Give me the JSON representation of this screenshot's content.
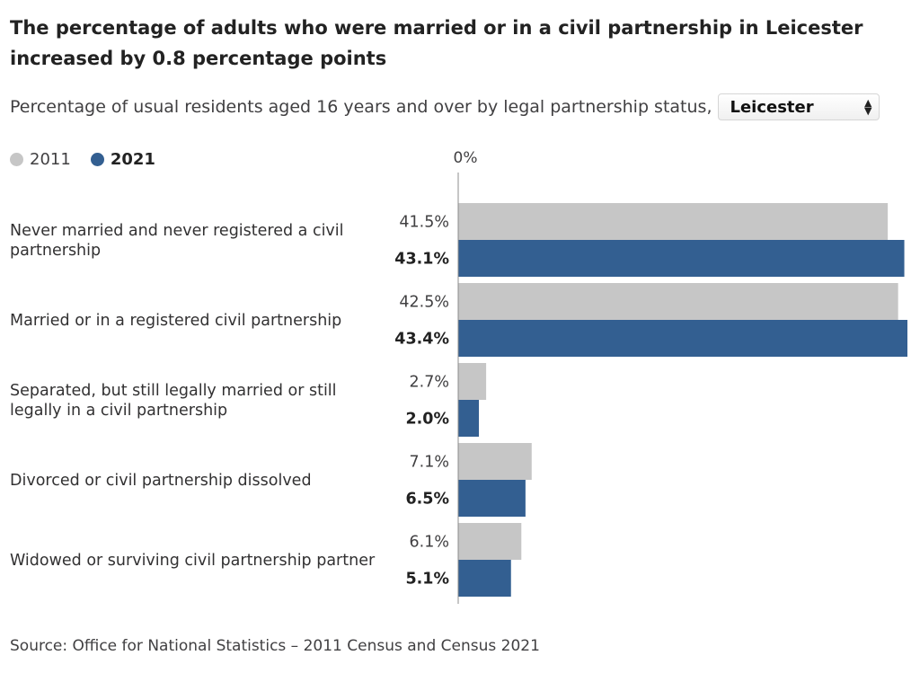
{
  "title": "The percentage of adults who were married or in a civil partnership in Leicester increased by 0.8 percentage points",
  "subtitle": "Percentage of usual residents aged 16 years and over by legal partnership status,",
  "area_select": {
    "value": "Leicester"
  },
  "source": "Source: Office for National Statistics – 2011 Census and Census 2021",
  "colors": {
    "series_2011": "#c6c6c6",
    "series_2021": "#335f91",
    "axis": "#8c8c8c"
  },
  "chart_data": {
    "type": "bar",
    "orientation": "horizontal",
    "axis_label": "0%",
    "xlim": [
      0,
      43.4
    ],
    "legend_placement": "top-left",
    "grid": false,
    "categories": [
      [
        "Never married and never registered a civil",
        "partnership"
      ],
      [
        "Married or in a registered civil partnership"
      ],
      [
        "Separated, but still legally married or still",
        "legally in a civil partnership"
      ],
      [
        "Divorced or civil partnership dissolved"
      ],
      [
        "Widowed or surviving civil partnership partner"
      ]
    ],
    "series": [
      {
        "name": "2011",
        "values": [
          41.5,
          42.5,
          2.7,
          7.1,
          6.1
        ],
        "labels": [
          "41.5%",
          "42.5%",
          "2.7%",
          "7.1%",
          "6.1%"
        ]
      },
      {
        "name": "2021",
        "values": [
          43.1,
          43.4,
          2.0,
          6.5,
          5.1
        ],
        "labels": [
          "43.1%",
          "43.4%",
          "2.0%",
          "6.5%",
          "5.1%"
        ]
      }
    ]
  }
}
